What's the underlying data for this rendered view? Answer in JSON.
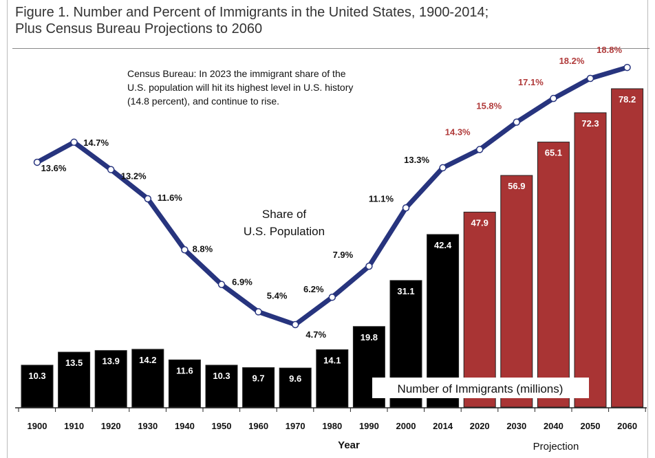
{
  "title_line1": "Figure 1. Number and Percent of Immigrants in the United States, 1900-2014;",
  "title_line2": "Plus Census Bureau Projections to 2060",
  "annotation_lines": [
    "Census Bureau: In 2023 the immigrant share of the",
    "U.S. population will hit its highest level in U.S. history",
    "(14.8 percent), and continue to rise."
  ],
  "share_label_lines": [
    "Share of",
    "U.S. Population"
  ],
  "number_label": "Number of Immigrants (millions)",
  "xlabel": "Year",
  "projection_label": "Projection",
  "colors": {
    "historical": "#000000",
    "projection": "#a93434",
    "line": "#27347e",
    "projection_text": "#b03a3a"
  },
  "chart_data": {
    "type": "bar",
    "categories": [
      "1900",
      "1910",
      "1920",
      "1930",
      "1940",
      "1950",
      "1960",
      "1970",
      "1980",
      "1990",
      "2000",
      "2014",
      "2020",
      "2030",
      "2040",
      "2050",
      "2060"
    ],
    "series": [
      {
        "name": "Number of Immigrants (millions)",
        "values": [
          10.3,
          13.5,
          13.9,
          14.2,
          11.6,
          10.3,
          9.7,
          9.6,
          14.1,
          19.8,
          31.1,
          42.4,
          47.9,
          56.9,
          65.1,
          72.3,
          78.2
        ]
      },
      {
        "name": "Share of U.S. Population",
        "type": "line",
        "values": [
          13.6,
          14.7,
          13.2,
          11.6,
          8.8,
          6.9,
          5.4,
          4.7,
          6.2,
          7.9,
          11.1,
          13.3,
          14.3,
          15.8,
          17.1,
          18.2,
          18.8
        ]
      }
    ],
    "share_labels": [
      "13.6%",
      "14.7%",
      "13.2%",
      "11.6%",
      "8.8%",
      "6.9%",
      "5.4%",
      "4.7%",
      "6.2%",
      "7.9%",
      "11.1%",
      "13.3%",
      "14.3%",
      "15.8%",
      "17.1%",
      "18.2%",
      "18.8%"
    ],
    "projection_start_index": 12,
    "xlabel": "Year",
    "ylabel": ""
  }
}
